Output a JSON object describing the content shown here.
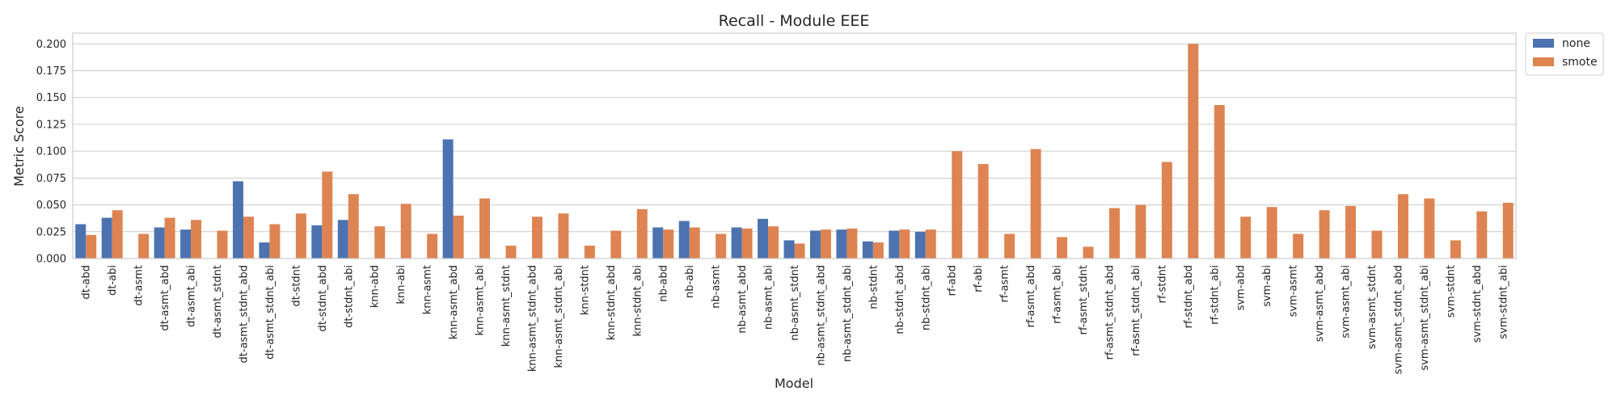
{
  "chart_data": {
    "type": "bar",
    "title": "Recall - Module EEE",
    "xlabel": "Model",
    "ylabel": "Metric Score",
    "ylim": [
      0,
      0.21
    ],
    "yticks": [
      "0.000",
      "0.025",
      "0.050",
      "0.075",
      "0.100",
      "0.125",
      "0.150",
      "0.175",
      "0.200"
    ],
    "grid": true,
    "legend_position": "outside-top-right",
    "categories": [
      "dt-abd",
      "dt-abi",
      "dt-asmt",
      "dt-asmt_abd",
      "dt-asmt_abi",
      "dt-asmt_stdnt",
      "dt-asmt_stdnt_abd",
      "dt-asmt_stdnt_abi",
      "dt-stdnt",
      "dt-stdnt_abd",
      "dt-stdnt_abi",
      "knn-abd",
      "knn-abi",
      "knn-asmt",
      "knn-asmt_abd",
      "knn-asmt_abi",
      "knn-asmt_stdnt",
      "knn-asmt_stdnt_abd",
      "knn-asmt_stdnt_abi",
      "knn-stdnt",
      "knn-stdnt_abd",
      "knn-stdnt_abi",
      "nb-abd",
      "nb-abi",
      "nb-asmt",
      "nb-asmt_abd",
      "nb-asmt_abi",
      "nb-asmt_stdnt",
      "nb-asmt_stdnt_abd",
      "nb-asmt_stdnt_abi",
      "nb-stdnt",
      "nb-stdnt_abd",
      "nb-stdnt_abi",
      "rf-abd",
      "rf-abi",
      "rf-asmt",
      "rf-asmt_abd",
      "rf-asmt_abi",
      "rf-asmt_stdnt",
      "rf-asmt_stdnt_abd",
      "rf-asmt_stdnt_abi",
      "rf-stdnt",
      "rf-stdnt_abd",
      "rf-stdnt_abi",
      "svm-abd",
      "svm-abi",
      "svm-asmt",
      "svm-asmt_abd",
      "svm-asmt_abi",
      "svm-asmt_stdnt",
      "svm-asmt_stdnt_abd",
      "svm-asmt_stdnt_abi",
      "svm-stdnt",
      "svm-stdnt_abd",
      "svm-stdnt_abi"
    ],
    "series": [
      {
        "name": "none",
        "color": "#4c72b0",
        "values": [
          0.032,
          0.038,
          0,
          0.029,
          0.027,
          0,
          0.072,
          0.015,
          0,
          0.031,
          0.036,
          0,
          0,
          0,
          0.111,
          0,
          0,
          0,
          0,
          0,
          0,
          0,
          0.029,
          0.035,
          0,
          0.029,
          0.037,
          0.017,
          0.026,
          0.027,
          0.016,
          0.026,
          0.025,
          0,
          0,
          0,
          0,
          0,
          0,
          0,
          0,
          0,
          0,
          0,
          0,
          0,
          0,
          0,
          0,
          0,
          0,
          0,
          0,
          0,
          0
        ]
      },
      {
        "name": "smote",
        "color": "#dd8452",
        "values": [
          0.022,
          0.045,
          0.023,
          0.038,
          0.036,
          0.026,
          0.039,
          0.032,
          0.042,
          0.081,
          0.06,
          0.03,
          0.051,
          0.023,
          0.04,
          0.056,
          0.012,
          0.039,
          0.042,
          0.012,
          0.026,
          0.046,
          0.027,
          0.029,
          0.023,
          0.028,
          0.03,
          0.014,
          0.027,
          0.028,
          0.015,
          0.027,
          0.027,
          0.1,
          0.088,
          0.023,
          0.102,
          0.02,
          0.011,
          0.047,
          0.05,
          0.09,
          0.2,
          0.143,
          0.039,
          0.048,
          0.023,
          0.045,
          0.049,
          0.026,
          0.06,
          0.056,
          0.017,
          0.044,
          0.052
        ]
      }
    ]
  }
}
